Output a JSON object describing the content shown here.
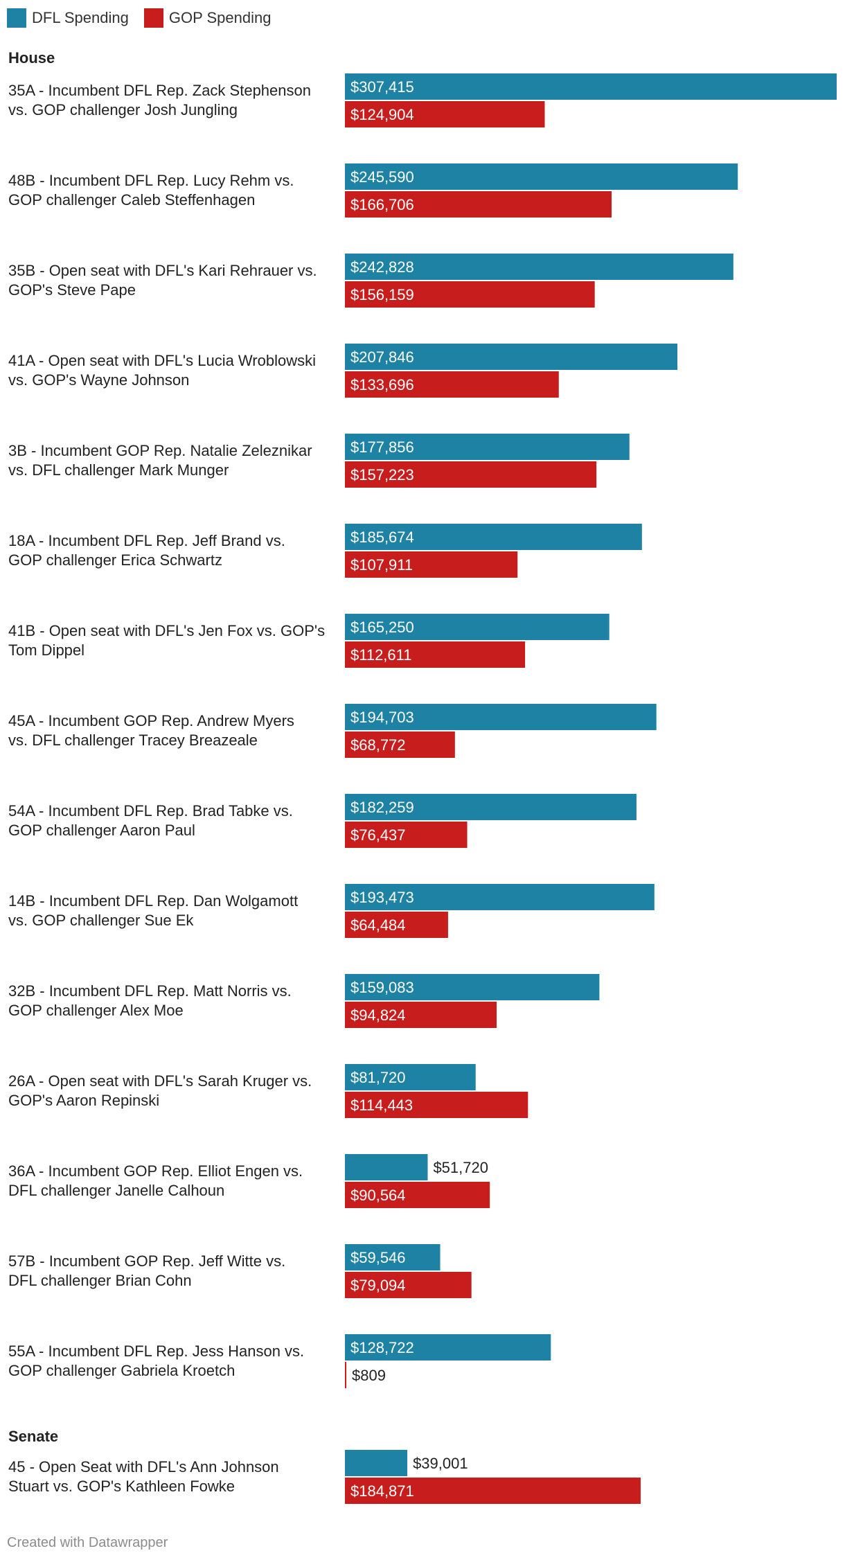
{
  "legend": {
    "dfl_label": "DFL Spending",
    "gop_label": "GOP Spending"
  },
  "colors": {
    "dfl": "#1d82a3",
    "gop": "#c71e1d"
  },
  "chart_data": {
    "type": "bar",
    "orientation": "horizontal",
    "series": [
      {
        "name": "DFL Spending",
        "key": "dfl"
      },
      {
        "name": "GOP Spending",
        "key": "gop"
      }
    ],
    "sections": [
      {
        "title": "House",
        "rows": [
          {
            "label": [
              "35A - Incumbent DFL Rep. Zack Stephenson",
              "vs. GOP challenger Josh Jungling"
            ],
            "dfl": 307415,
            "gop": 124904,
            "dfl_label": "$307,415",
            "gop_label": "$124,904"
          },
          {
            "label": [
              "48B - Incumbent DFL Rep. Lucy Rehm vs.",
              "GOP challenger Caleb Steffenhagen"
            ],
            "dfl": 245590,
            "gop": 166706,
            "dfl_label": "$245,590",
            "gop_label": "$166,706"
          },
          {
            "label": [
              "35B - Open seat with DFL's Kari Rehrauer vs.",
              "GOP's Steve Pape"
            ],
            "dfl": 242828,
            "gop": 156159,
            "dfl_label": "$242,828",
            "gop_label": "$156,159"
          },
          {
            "label": [
              "41A - Open seat with DFL's Lucia Wroblowski",
              "vs. GOP's Wayne Johnson"
            ],
            "dfl": 207846,
            "gop": 133696,
            "dfl_label": "$207,846",
            "gop_label": "$133,696"
          },
          {
            "label": [
              "3B - Incumbent GOP Rep. Natalie Zeleznikar",
              "vs. DFL challenger Mark Munger"
            ],
            "dfl": 177856,
            "gop": 157223,
            "dfl_label": "$177,856",
            "gop_label": "$157,223"
          },
          {
            "label": [
              "18A - Incumbent DFL Rep. Jeff Brand vs.",
              "GOP challenger Erica Schwartz"
            ],
            "dfl": 185674,
            "gop": 107911,
            "dfl_label": "$185,674",
            "gop_label": "$107,911"
          },
          {
            "label": [
              "41B - Open seat with DFL's Jen Fox vs. GOP's",
              "Tom Dippel"
            ],
            "dfl": 165250,
            "gop": 112611,
            "dfl_label": "$165,250",
            "gop_label": "$112,611"
          },
          {
            "label": [
              "45A - Incumbent GOP Rep. Andrew Myers",
              "vs. DFL challenger Tracey Breazeale"
            ],
            "dfl": 194703,
            "gop": 68772,
            "dfl_label": "$194,703",
            "gop_label": "$68,772"
          },
          {
            "label": [
              "54A - Incumbent DFL Rep. Brad Tabke vs.",
              "GOP challenger Aaron Paul"
            ],
            "dfl": 182259,
            "gop": 76437,
            "dfl_label": "$182,259",
            "gop_label": "$76,437"
          },
          {
            "label": [
              "14B - Incumbent DFL Rep. Dan Wolgamott",
              "vs. GOP challenger Sue Ek"
            ],
            "dfl": 193473,
            "gop": 64484,
            "dfl_label": "$193,473",
            "gop_label": "$64,484"
          },
          {
            "label": [
              "32B - Incumbent DFL Rep. Matt Norris vs.",
              "GOP challenger Alex Moe"
            ],
            "dfl": 159083,
            "gop": 94824,
            "dfl_label": "$159,083",
            "gop_label": "$94,824"
          },
          {
            "label": [
              "26A - Open seat with DFL's Sarah Kruger vs.",
              "GOP's Aaron Repinski"
            ],
            "dfl": 81720,
            "gop": 114443,
            "dfl_label": "$81,720",
            "gop_label": "$114,443"
          },
          {
            "label": [
              "36A - Incumbent GOP Rep. Elliot Engen vs.",
              "DFL challenger Janelle Calhoun"
            ],
            "dfl": 51720,
            "gop": 90564,
            "dfl_label": "$51,720",
            "gop_label": "$90,564"
          },
          {
            "label": [
              "57B - Incumbent GOP Rep. Jeff Witte vs.",
              "DFL challenger Brian Cohn"
            ],
            "dfl": 59546,
            "gop": 79094,
            "dfl_label": "$59,546",
            "gop_label": "$79,094"
          },
          {
            "label": [
              "55A - Incumbent DFL Rep. Jess Hanson vs.",
              "GOP challenger Gabriela Kroetch"
            ],
            "dfl": 128722,
            "gop": 809,
            "dfl_label": "$128,722",
            "gop_label": "$809"
          }
        ]
      },
      {
        "title": "Senate",
        "rows": [
          {
            "label": [
              "45 - Open Seat with DFL's Ann Johnson",
              "Stuart vs. GOP's Kathleen Fowke"
            ],
            "dfl": 39001,
            "gop": 184871,
            "dfl_label": "$39,001",
            "gop_label": "$184,871"
          }
        ]
      }
    ],
    "xlim": [
      0,
      307415
    ],
    "grid": false,
    "legend_position": "top-left"
  },
  "footer": {
    "credit": "Created with Datawrapper"
  }
}
